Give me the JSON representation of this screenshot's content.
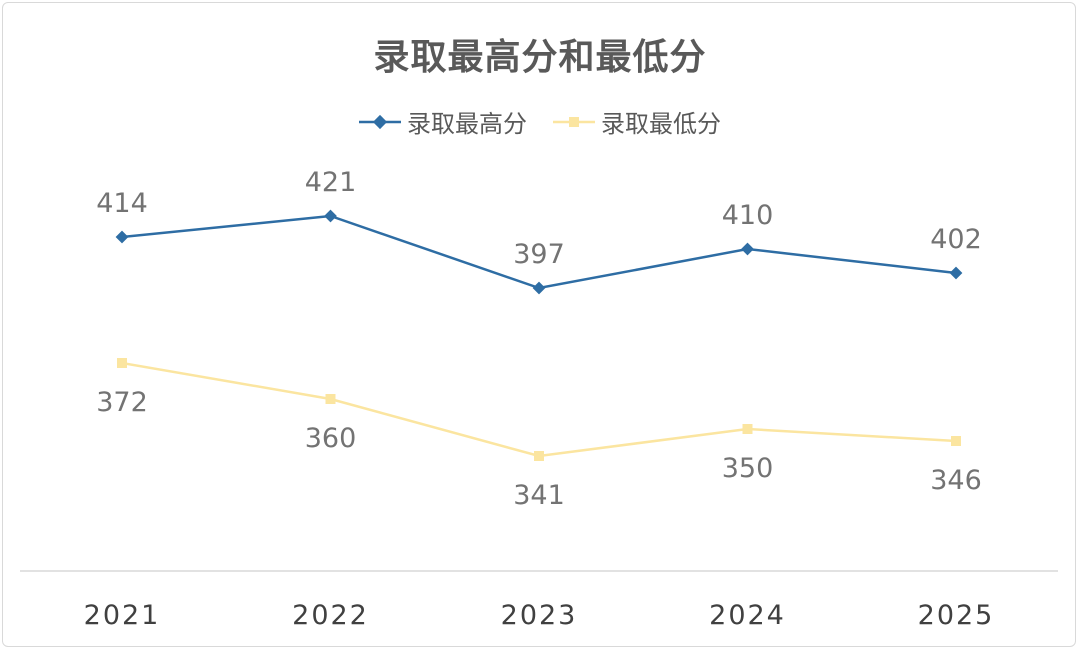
{
  "chart_data": {
    "type": "line",
    "title": "录取最高分和最低分",
    "categories": [
      "2021",
      "2022",
      "2023",
      "2024",
      "2025"
    ],
    "series": [
      {
        "name": "录取最高分",
        "values": [
          414,
          421,
          397,
          410,
          402
        ],
        "color": "#2e6da4",
        "marker": "diamond",
        "label_position": "above"
      },
      {
        "name": "录取最低分",
        "values": [
          372,
          360,
          341,
          350,
          346
        ],
        "color": "#fbe5a0",
        "marker": "square",
        "label_position": "below"
      }
    ],
    "legend_position": "top",
    "grid": false,
    "data_labels": true
  }
}
